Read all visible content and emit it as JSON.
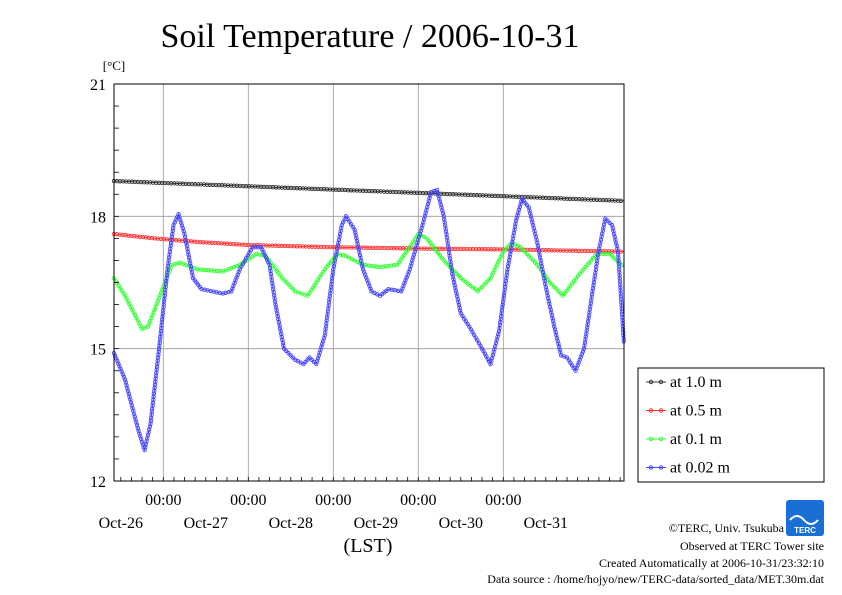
{
  "chart_data": {
    "type": "line",
    "title": "Soil Temperature / 2006-10-31",
    "yunit": "[°C]",
    "xlabel": "(LST)",
    "ylim": [
      12,
      21
    ],
    "yticks": [
      12,
      15,
      18,
      21
    ],
    "xlim": [
      25.42,
      31.42
    ],
    "x_time_labels": [
      "00:00",
      "00:00",
      "00:00",
      "00:00",
      "00:00"
    ],
    "x_time_positions": [
      26,
      27,
      28,
      29,
      30
    ],
    "x_date_labels": [
      "Oct-26",
      "Oct-27",
      "Oct-28",
      "Oct-29",
      "Oct-30",
      "Oct-31"
    ],
    "x_date_positions": [
      25.5,
      26.5,
      27.5,
      28.5,
      29.5,
      30.5
    ],
    "grid": true,
    "legend_position": "right",
    "series": [
      {
        "name": "at 1.0 m",
        "color": "#333333",
        "points": [
          [
            25.42,
            18.8
          ],
          [
            31.42,
            18.35
          ]
        ]
      },
      {
        "name": "at 0.5 m",
        "color": "#ff3333",
        "points": [
          [
            25.42,
            17.6
          ],
          [
            25.9,
            17.5
          ],
          [
            26.4,
            17.42
          ],
          [
            27.0,
            17.35
          ],
          [
            28.0,
            17.3
          ],
          [
            29.0,
            17.27
          ],
          [
            30.0,
            17.25
          ],
          [
            31.42,
            17.2
          ]
        ]
      },
      {
        "name": "at 0.1 m",
        "color": "#33ff33",
        "points": [
          [
            25.42,
            16.6
          ],
          [
            25.55,
            16.2
          ],
          [
            25.75,
            15.45
          ],
          [
            25.82,
            15.5
          ],
          [
            26.0,
            16.4
          ],
          [
            26.1,
            16.9
          ],
          [
            26.2,
            16.95
          ],
          [
            26.4,
            16.8
          ],
          [
            26.7,
            16.75
          ],
          [
            26.9,
            16.9
          ],
          [
            27.1,
            17.15
          ],
          [
            27.2,
            17.1
          ],
          [
            27.4,
            16.6
          ],
          [
            27.55,
            16.3
          ],
          [
            27.7,
            16.2
          ],
          [
            27.9,
            16.8
          ],
          [
            28.05,
            17.15
          ],
          [
            28.15,
            17.1
          ],
          [
            28.35,
            16.9
          ],
          [
            28.55,
            16.85
          ],
          [
            28.75,
            16.9
          ],
          [
            28.9,
            17.3
          ],
          [
            29.0,
            17.6
          ],
          [
            29.1,
            17.5
          ],
          [
            29.3,
            17.0
          ],
          [
            29.5,
            16.6
          ],
          [
            29.7,
            16.3
          ],
          [
            29.85,
            16.6
          ],
          [
            30.0,
            17.2
          ],
          [
            30.1,
            17.4
          ],
          [
            30.2,
            17.3
          ],
          [
            30.4,
            16.9
          ],
          [
            30.55,
            16.5
          ],
          [
            30.7,
            16.2
          ],
          [
            30.9,
            16.7
          ],
          [
            31.1,
            17.15
          ],
          [
            31.25,
            17.15
          ],
          [
            31.42,
            16.85
          ]
        ]
      },
      {
        "name": "at 0.02 m",
        "color": "#4444ff",
        "points": [
          [
            25.42,
            14.9
          ],
          [
            25.55,
            14.3
          ],
          [
            25.7,
            13.2
          ],
          [
            25.78,
            12.7
          ],
          [
            25.85,
            13.3
          ],
          [
            25.95,
            15.0
          ],
          [
            26.05,
            16.8
          ],
          [
            26.12,
            17.8
          ],
          [
            26.18,
            18.05
          ],
          [
            26.25,
            17.6
          ],
          [
            26.35,
            16.6
          ],
          [
            26.45,
            16.35
          ],
          [
            26.7,
            16.25
          ],
          [
            26.8,
            16.3
          ],
          [
            26.9,
            16.8
          ],
          [
            27.05,
            17.3
          ],
          [
            27.15,
            17.3
          ],
          [
            27.25,
            16.9
          ],
          [
            27.32,
            16.0
          ],
          [
            27.42,
            15.0
          ],
          [
            27.55,
            14.75
          ],
          [
            27.65,
            14.65
          ],
          [
            27.72,
            14.8
          ],
          [
            27.8,
            14.65
          ],
          [
            27.9,
            15.3
          ],
          [
            28.0,
            16.8
          ],
          [
            28.1,
            17.8
          ],
          [
            28.15,
            18.0
          ],
          [
            28.25,
            17.7
          ],
          [
            28.35,
            16.8
          ],
          [
            28.45,
            16.3
          ],
          [
            28.55,
            16.2
          ],
          [
            28.65,
            16.35
          ],
          [
            28.8,
            16.3
          ],
          [
            28.9,
            16.8
          ],
          [
            29.05,
            17.8
          ],
          [
            29.15,
            18.55
          ],
          [
            29.22,
            18.6
          ],
          [
            29.3,
            18.0
          ],
          [
            29.4,
            16.7
          ],
          [
            29.5,
            15.8
          ],
          [
            29.6,
            15.5
          ],
          [
            29.75,
            15.0
          ],
          [
            29.85,
            14.65
          ],
          [
            29.95,
            15.4
          ],
          [
            30.05,
            16.8
          ],
          [
            30.15,
            17.9
          ],
          [
            30.22,
            18.4
          ],
          [
            30.3,
            18.2
          ],
          [
            30.4,
            17.4
          ],
          [
            30.5,
            16.4
          ],
          [
            30.6,
            15.5
          ],
          [
            30.68,
            14.85
          ],
          [
            30.75,
            14.8
          ],
          [
            30.85,
            14.5
          ],
          [
            30.95,
            15.0
          ],
          [
            31.05,
            16.3
          ],
          [
            31.12,
            17.2
          ],
          [
            31.2,
            17.95
          ],
          [
            31.28,
            17.8
          ],
          [
            31.35,
            17.2
          ],
          [
            31.42,
            15.1
          ]
        ]
      }
    ]
  },
  "credits": {
    "copyright": "©TERC, Univ. Tsukuba",
    "observed": "Observed at TERC Tower site",
    "created": "Created Automatically at 2006-10-31/23:32:10",
    "source": "Data source : /home/hojyo/new/TERC-data/sorted_data/MET.30m.dat"
  },
  "logo": {
    "text": "TERC",
    "color": "#1a6fd6"
  }
}
